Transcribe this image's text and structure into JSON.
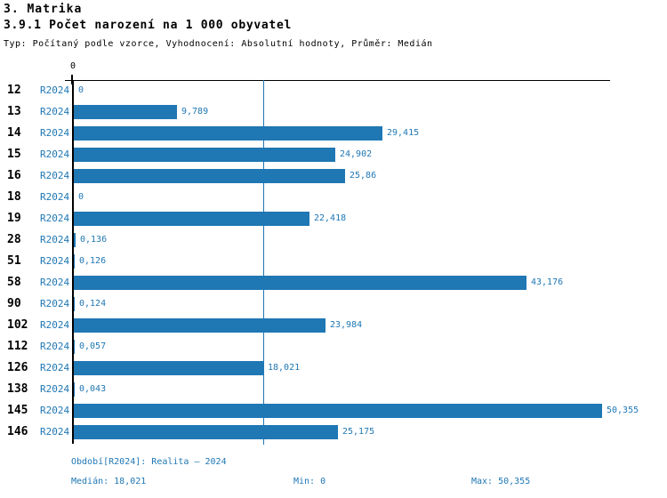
{
  "page_title": "3. Matrika",
  "chart_data": {
    "type": "bar",
    "orientation": "horizontal",
    "title": "3.9.1 Počet narození na 1 000 obyvatel",
    "subtitle": "Typ: Počítaný podle vzorce, Vyhodnocení: Absolutní hodnoty, Průměr: Medián",
    "categories": [
      "12",
      "13",
      "14",
      "15",
      "16",
      "18",
      "19",
      "28",
      "51",
      "58",
      "90",
      "102",
      "112",
      "126",
      "138",
      "145",
      "146"
    ],
    "series": [
      {
        "name": "R2024",
        "values": [
          0,
          9.789,
          29.415,
          24.902,
          25.86,
          0,
          22.418,
          0.136,
          0.126,
          43.176,
          0.124,
          23.984,
          0.057,
          18.021,
          0.043,
          50.355,
          25.175
        ]
      }
    ],
    "value_labels": [
      "0",
      "9,789",
      "29,415",
      "24,902",
      "25,86",
      "0",
      "22,418",
      "0,136",
      "0,126",
      "43,176",
      "0,124",
      "23,984",
      "0,057",
      "18,021",
      "0,043",
      "50,355",
      "25,175"
    ],
    "axis_tick_label": "0",
    "xlim": [
      0,
      51
    ],
    "median_value": 18.021,
    "min_value": 0,
    "max_value": 50.355,
    "grid": false,
    "legend": "none",
    "bar_color": "#1f77b4",
    "label_color": "#1f77b4",
    "median_line_color": "#1f77b4"
  },
  "footer": {
    "period": "Období[R2024]: Realita – 2024",
    "median": "Medián: 18,021",
    "min": "Min: 0",
    "max": "Max: 50,355"
  }
}
